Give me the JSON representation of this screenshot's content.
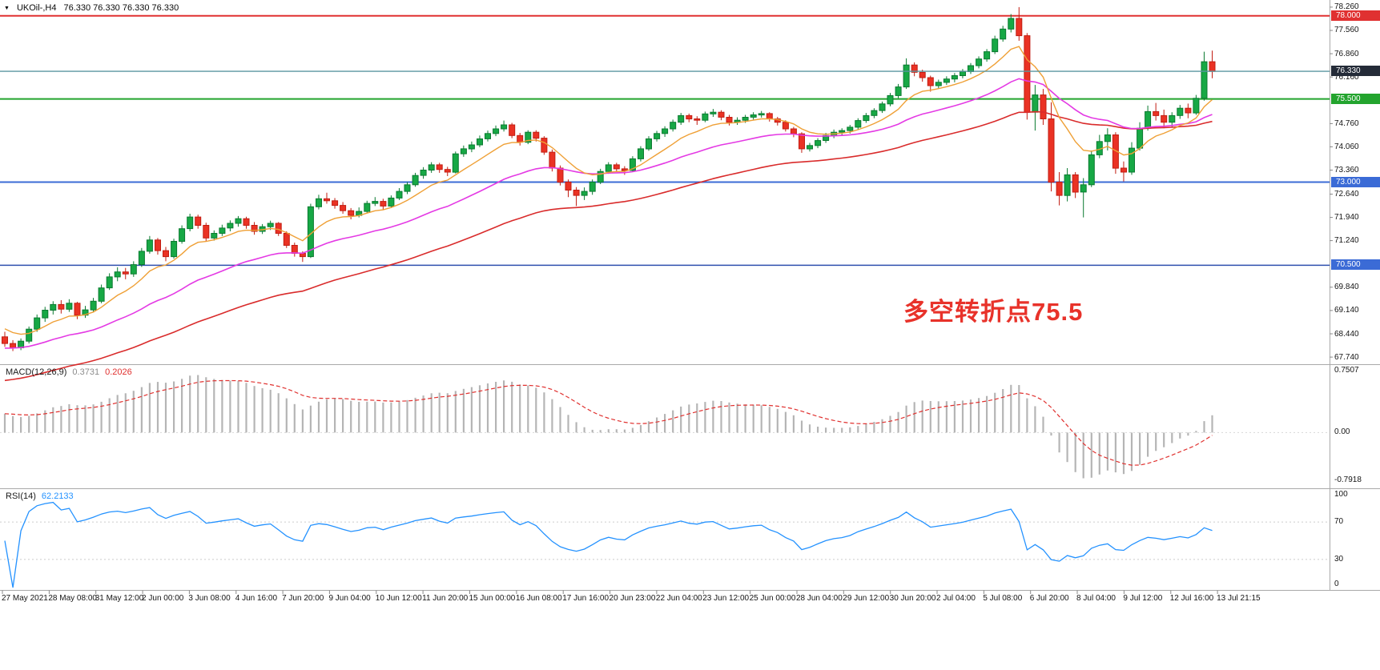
{
  "titlebar": {
    "dropdown_icon": "▼",
    "symbol_period": "UKOil-,H4",
    "ohlc_text": "76.330 76.330 76.330 76.330"
  },
  "main_chart": {
    "annotation": {
      "text": "多空转折点75.5",
      "color": "#e8322a"
    },
    "price_line": {
      "value": 76.33,
      "color": "#5a96a0"
    },
    "hlines": [
      {
        "value": 78.0,
        "color": "#e03131",
        "width": 2
      },
      {
        "value": 75.5,
        "color": "#23a42e",
        "width": 2
      },
      {
        "value": 73.0,
        "color": "#3b6bd6",
        "width": 2
      },
      {
        "value": 70.5,
        "color": "#2f4fae",
        "width": 1.5
      }
    ],
    "price_axis": {
      "ticks": [
        {
          "text": "78.260",
          "value": 78.26
        },
        {
          "text": "77.560",
          "value": 77.56
        },
        {
          "text": "76.860",
          "value": 76.86
        },
        {
          "text": "76.160",
          "value": 76.16
        },
        {
          "text": "74.760",
          "value": 74.76
        },
        {
          "text": "74.060",
          "value": 74.06
        },
        {
          "text": "73.360",
          "value": 73.36
        },
        {
          "text": "72.640",
          "value": 72.64
        },
        {
          "text": "71.940",
          "value": 71.94
        },
        {
          "text": "71.240",
          "value": 71.24
        },
        {
          "text": "69.840",
          "value": 69.84
        },
        {
          "text": "69.140",
          "value": 69.14
        },
        {
          "text": "68.440",
          "value": 68.44
        },
        {
          "text": "67.740",
          "value": 67.74
        }
      ],
      "highlights": [
        {
          "text": "78.000",
          "value": 78.0,
          "bg": "#e03131",
          "fg": "#ffffff"
        },
        {
          "text": "76.330",
          "value": 76.33,
          "bg": "#242b38",
          "fg": "#ffffff"
        },
        {
          "text": "75.500",
          "value": 75.5,
          "bg": "#23a42e",
          "fg": "#ffffff"
        },
        {
          "text": "73.000",
          "value": 73.0,
          "bg": "#3b6bd6",
          "fg": "#ffffff"
        },
        {
          "text": "70.500",
          "value": 70.5,
          "bg": "#3b6bd6",
          "fg": "#ffffff"
        }
      ]
    }
  },
  "macd_panel": {
    "label": "MACD(12,26,9)",
    "main_value": "0.3731",
    "signal_value": "0.2026",
    "axis_top": "0.7507",
    "axis_zero": "0.00",
    "axis_bottom": "-0.7918",
    "histogram_color": "#b5b5b5",
    "signal_color": "#e0312f",
    "main_value_color": "#8c8c8c"
  },
  "rsi_panel": {
    "label": "RSI(14)",
    "value": "62.2133",
    "line_color": "#2492ff",
    "axis": {
      "top": "100",
      "upper": "70",
      "lower": "30",
      "bottom": "0"
    },
    "levels": [
      70,
      30
    ]
  },
  "time_axis": {
    "labels": [
      "27 May 2021",
      "28 May 08:00",
      "31 May 12:00",
      "2 Jun 00:00",
      "3 Jun 08:00",
      "4 Jun 16:00",
      "7 Jun 20:00",
      "9 Jun 04:00",
      "10 Jun 12:00",
      "11 Jun 20:00",
      "15 Jun 00:00",
      "16 Jun 08:00",
      "17 Jun 16:00",
      "20 Jun 23:00",
      "22 Jun 04:00",
      "23 Jun 12:00",
      "25 Jun 00:00",
      "28 Jun 04:00",
      "29 Jun 12:00",
      "30 Jun 20:00",
      "2 Jul 04:00",
      "5 Jul 08:00",
      "6 Jul 20:00",
      "8 Jul 04:00",
      "9 Jul 12:00",
      "12 Jul 16:00",
      "13 Jul 21:15"
    ]
  },
  "chart_data": {
    "type": "candlestick",
    "symbol": "UKOil-",
    "timeframe": "H4",
    "title": "UKOil-,H4",
    "ylim": [
      67.55,
      78.45
    ],
    "y_ticks": [
      78.26,
      77.56,
      76.86,
      76.16,
      74.76,
      74.06,
      73.36,
      72.64,
      71.94,
      71.24,
      69.84,
      69.14,
      68.44,
      67.74
    ],
    "x_labels": [
      "27 May 2021",
      "28 May 08:00",
      "31 May 12:00",
      "2 Jun 00:00",
      "3 Jun 08:00",
      "4 Jun 16:00",
      "7 Jun 20:00",
      "9 Jun 04:00",
      "10 Jun 12:00",
      "11 Jun 20:00",
      "15 Jun 00:00",
      "16 Jun 08:00",
      "17 Jun 16:00",
      "20 Jun 23:00",
      "22 Jun 04:00",
      "23 Jun 12:00",
      "25 Jun 00:00",
      "28 Jun 04:00",
      "29 Jun 12:00",
      "30 Jun 20:00",
      "2 Jul 04:00",
      "5 Jul 08:00",
      "6 Jul 20:00",
      "8 Jul 04:00",
      "9 Jul 12:00",
      "12 Jul 16:00",
      "13 Jul 21:15"
    ],
    "last_close": 76.33,
    "horizontal_levels": [
      78.0,
      76.33,
      75.5,
      73.0,
      70.5
    ],
    "colors": {
      "up_fill": "#17a845",
      "up_stroke": "#0a7a30",
      "down_fill": "#ea3224",
      "down_stroke": "#c11d12"
    },
    "indicators": {
      "macd": {
        "fast": 12,
        "slow": 26,
        "signal": 9,
        "current_main": 0.3731,
        "current_signal": 0.2026,
        "axis_max_label": 0.7507,
        "axis_min_label": -0.7918
      },
      "rsi": {
        "period": 14,
        "current": 62.2133,
        "levels": [
          70,
          30
        ],
        "range": [
          0,
          100
        ]
      },
      "moving_average_line_colors": [
        "#efa036",
        "#e43ae4",
        "#d92b2b"
      ]
    },
    "candles_ohlc": [
      [
        68.35,
        68.5,
        68.05,
        68.15
      ],
      [
        68.15,
        68.25,
        67.92,
        68.02
      ],
      [
        68.02,
        68.3,
        67.95,
        68.22
      ],
      [
        68.22,
        68.66,
        68.15,
        68.58
      ],
      [
        68.58,
        69.02,
        68.5,
        68.92
      ],
      [
        68.92,
        69.25,
        68.8,
        69.15
      ],
      [
        69.15,
        69.42,
        69.02,
        69.32
      ],
      [
        69.32,
        69.45,
        69.05,
        69.18
      ],
      [
        69.18,
        69.48,
        69.1,
        69.36
      ],
      [
        69.36,
        69.4,
        68.88,
        69.0
      ],
      [
        69.0,
        69.28,
        68.92,
        69.16
      ],
      [
        69.16,
        69.52,
        69.08,
        69.42
      ],
      [
        69.42,
        69.92,
        69.36,
        69.82
      ],
      [
        69.82,
        70.26,
        69.76,
        70.15
      ],
      [
        70.15,
        70.44,
        70.02,
        70.3
      ],
      [
        70.3,
        70.42,
        70.08,
        70.24
      ],
      [
        70.24,
        70.62,
        70.15,
        70.52
      ],
      [
        70.52,
        71.02,
        70.45,
        70.92
      ],
      [
        70.92,
        71.38,
        70.85,
        71.26
      ],
      [
        71.26,
        71.32,
        70.82,
        70.94
      ],
      [
        70.94,
        71.05,
        70.62,
        70.76
      ],
      [
        70.76,
        71.3,
        70.7,
        71.22
      ],
      [
        71.22,
        71.7,
        71.15,
        71.6
      ],
      [
        71.6,
        72.05,
        71.52,
        71.95
      ],
      [
        71.95,
        72.02,
        71.6,
        71.7
      ],
      [
        71.7,
        71.78,
        71.22,
        71.32
      ],
      [
        71.32,
        71.55,
        71.24,
        71.46
      ],
      [
        71.46,
        71.72,
        71.38,
        71.62
      ],
      [
        71.62,
        71.85,
        71.52,
        71.76
      ],
      [
        71.76,
        71.98,
        71.66,
        71.9
      ],
      [
        71.9,
        71.96,
        71.6,
        71.7
      ],
      [
        71.7,
        71.8,
        71.42,
        71.52
      ],
      [
        71.52,
        71.74,
        71.44,
        71.66
      ],
      [
        71.66,
        71.84,
        71.56,
        71.76
      ],
      [
        71.76,
        71.8,
        71.38,
        71.46
      ],
      [
        71.46,
        71.52,
        71.02,
        71.1
      ],
      [
        71.1,
        71.18,
        70.76,
        70.86
      ],
      [
        70.86,
        70.92,
        70.6,
        70.76
      ],
      [
        70.76,
        72.35,
        70.72,
        72.26
      ],
      [
        72.26,
        72.62,
        72.18,
        72.5
      ],
      [
        72.5,
        72.68,
        72.35,
        72.44
      ],
      [
        72.44,
        72.52,
        72.2,
        72.3
      ],
      [
        72.3,
        72.4,
        72.05,
        72.14
      ],
      [
        72.14,
        72.22,
        71.88,
        72.0
      ],
      [
        72.0,
        72.24,
        71.94,
        72.12
      ],
      [
        72.12,
        72.44,
        72.06,
        72.36
      ],
      [
        72.36,
        72.55,
        72.28,
        72.42
      ],
      [
        72.42,
        72.5,
        72.18,
        72.28
      ],
      [
        72.28,
        72.6,
        72.22,
        72.52
      ],
      [
        72.52,
        72.82,
        72.46,
        72.72
      ],
      [
        72.72,
        73.0,
        72.64,
        72.92
      ],
      [
        72.92,
        73.28,
        72.86,
        73.2
      ],
      [
        73.2,
        73.45,
        73.1,
        73.36
      ],
      [
        73.36,
        73.6,
        73.28,
        73.52
      ],
      [
        73.52,
        73.58,
        73.28,
        73.38
      ],
      [
        73.38,
        73.46,
        73.18,
        73.3
      ],
      [
        73.3,
        73.92,
        73.26,
        73.85
      ],
      [
        73.85,
        74.1,
        73.76,
        74.0
      ],
      [
        74.0,
        74.22,
        73.9,
        74.12
      ],
      [
        74.12,
        74.4,
        74.05,
        74.3
      ],
      [
        74.3,
        74.55,
        74.22,
        74.46
      ],
      [
        74.46,
        74.7,
        74.38,
        74.6
      ],
      [
        74.6,
        74.85,
        74.52,
        74.72
      ],
      [
        74.72,
        74.78,
        74.32,
        74.4
      ],
      [
        74.4,
        74.48,
        74.1,
        74.2
      ],
      [
        74.2,
        74.56,
        74.14,
        74.5
      ],
      [
        74.5,
        74.56,
        74.22,
        74.32
      ],
      [
        74.32,
        74.38,
        73.82,
        73.9
      ],
      [
        73.9,
        73.98,
        73.32,
        73.42
      ],
      [
        73.42,
        73.5,
        72.9,
        73.0
      ],
      [
        73.0,
        73.08,
        72.55,
        72.76
      ],
      [
        72.76,
        72.85,
        72.28,
        72.6
      ],
      [
        72.6,
        72.84,
        72.46,
        72.72
      ],
      [
        72.72,
        73.08,
        72.62,
        73.0
      ],
      [
        73.0,
        73.4,
        72.94,
        73.32
      ],
      [
        73.32,
        73.6,
        73.25,
        73.52
      ],
      [
        73.52,
        73.58,
        73.3,
        73.4
      ],
      [
        73.4,
        73.48,
        73.22,
        73.35
      ],
      [
        73.35,
        73.78,
        73.3,
        73.7
      ],
      [
        73.7,
        74.08,
        73.62,
        74.0
      ],
      [
        74.0,
        74.38,
        73.94,
        74.3
      ],
      [
        74.3,
        74.54,
        74.22,
        74.46
      ],
      [
        74.46,
        74.68,
        74.36,
        74.6
      ],
      [
        74.6,
        74.88,
        74.52,
        74.8
      ],
      [
        74.8,
        75.08,
        74.72,
        75.0
      ],
      [
        75.0,
        75.06,
        74.8,
        74.9
      ],
      [
        74.9,
        74.98,
        74.72,
        74.86
      ],
      [
        74.86,
        75.12,
        74.8,
        75.05
      ],
      [
        75.05,
        75.2,
        74.96,
        75.1
      ],
      [
        75.1,
        75.16,
        74.86,
        74.95
      ],
      [
        74.95,
        75.02,
        74.7,
        74.8
      ],
      [
        74.8,
        74.95,
        74.72,
        74.86
      ],
      [
        74.86,
        75.02,
        74.78,
        74.95
      ],
      [
        74.95,
        75.1,
        74.88,
        75.02
      ],
      [
        75.02,
        75.14,
        74.94,
        75.06
      ],
      [
        75.06,
        75.1,
        74.82,
        74.9
      ],
      [
        74.9,
        74.96,
        74.7,
        74.8
      ],
      [
        74.8,
        74.86,
        74.52,
        74.6
      ],
      [
        74.6,
        74.66,
        74.35,
        74.45
      ],
      [
        74.45,
        74.5,
        73.88,
        74.0
      ],
      [
        74.0,
        74.18,
        73.92,
        74.1
      ],
      [
        74.1,
        74.32,
        74.02,
        74.25
      ],
      [
        74.25,
        74.48,
        74.18,
        74.4
      ],
      [
        74.4,
        74.58,
        74.32,
        74.5
      ],
      [
        74.5,
        74.62,
        74.4,
        74.55
      ],
      [
        74.55,
        74.72,
        74.46,
        74.65
      ],
      [
        74.65,
        74.92,
        74.58,
        74.85
      ],
      [
        74.85,
        75.08,
        74.78,
        75.0
      ],
      [
        75.0,
        75.22,
        74.92,
        75.15
      ],
      [
        75.15,
        75.42,
        75.08,
        75.35
      ],
      [
        75.35,
        75.68,
        75.28,
        75.6
      ],
      [
        75.6,
        75.95,
        75.52,
        75.86
      ],
      [
        75.86,
        76.72,
        75.8,
        76.52
      ],
      [
        76.52,
        76.6,
        76.18,
        76.3
      ],
      [
        76.3,
        76.38,
        76.02,
        76.14
      ],
      [
        76.14,
        76.2,
        75.72,
        75.9
      ],
      [
        75.9,
        76.08,
        75.82,
        76.0
      ],
      [
        76.0,
        76.18,
        75.92,
        76.1
      ],
      [
        76.1,
        76.28,
        76.0,
        76.2
      ],
      [
        76.2,
        76.4,
        76.12,
        76.32
      ],
      [
        76.32,
        76.58,
        76.25,
        76.5
      ],
      [
        76.5,
        76.78,
        76.42,
        76.7
      ],
      [
        76.7,
        77.0,
        76.62,
        76.92
      ],
      [
        76.92,
        77.4,
        76.85,
        77.3
      ],
      [
        77.3,
        77.7,
        77.22,
        77.6
      ],
      [
        77.6,
        78.05,
        77.5,
        77.92
      ],
      [
        77.92,
        78.26,
        77.25,
        77.4
      ],
      [
        77.4,
        77.48,
        74.88,
        75.1
      ],
      [
        75.1,
        75.92,
        74.55,
        75.62
      ],
      [
        75.62,
        75.8,
        74.72,
        74.9
      ],
      [
        74.9,
        75.4,
        72.72,
        73.0
      ],
      [
        73.0,
        73.3,
        72.3,
        72.6
      ],
      [
        72.6,
        73.42,
        72.42,
        73.22
      ],
      [
        73.22,
        73.3,
        72.52,
        72.7
      ],
      [
        72.7,
        73.12,
        71.94,
        72.92
      ],
      [
        72.92,
        73.95,
        72.85,
        73.82
      ],
      [
        73.82,
        74.42,
        73.72,
        74.22
      ],
      [
        74.22,
        74.62,
        73.95,
        74.42
      ],
      [
        74.42,
        74.5,
        73.25,
        73.42
      ],
      [
        73.42,
        73.62,
        73.02,
        73.3
      ],
      [
        73.3,
        74.2,
        73.22,
        74.02
      ],
      [
        74.02,
        74.8,
        73.95,
        74.62
      ],
      [
        74.62,
        75.3,
        74.55,
        75.12
      ],
      [
        75.12,
        75.38,
        74.85,
        75.0
      ],
      [
        75.0,
        75.18,
        74.62,
        74.8
      ],
      [
        74.8,
        75.1,
        74.65,
        75.0
      ],
      [
        75.0,
        75.32,
        74.9,
        75.22
      ],
      [
        75.22,
        75.36,
        74.92,
        75.08
      ],
      [
        75.08,
        75.62,
        75.02,
        75.52
      ],
      [
        75.52,
        76.92,
        75.45,
        76.62
      ],
      [
        76.62,
        76.95,
        76.12,
        76.33
      ]
    ]
  }
}
